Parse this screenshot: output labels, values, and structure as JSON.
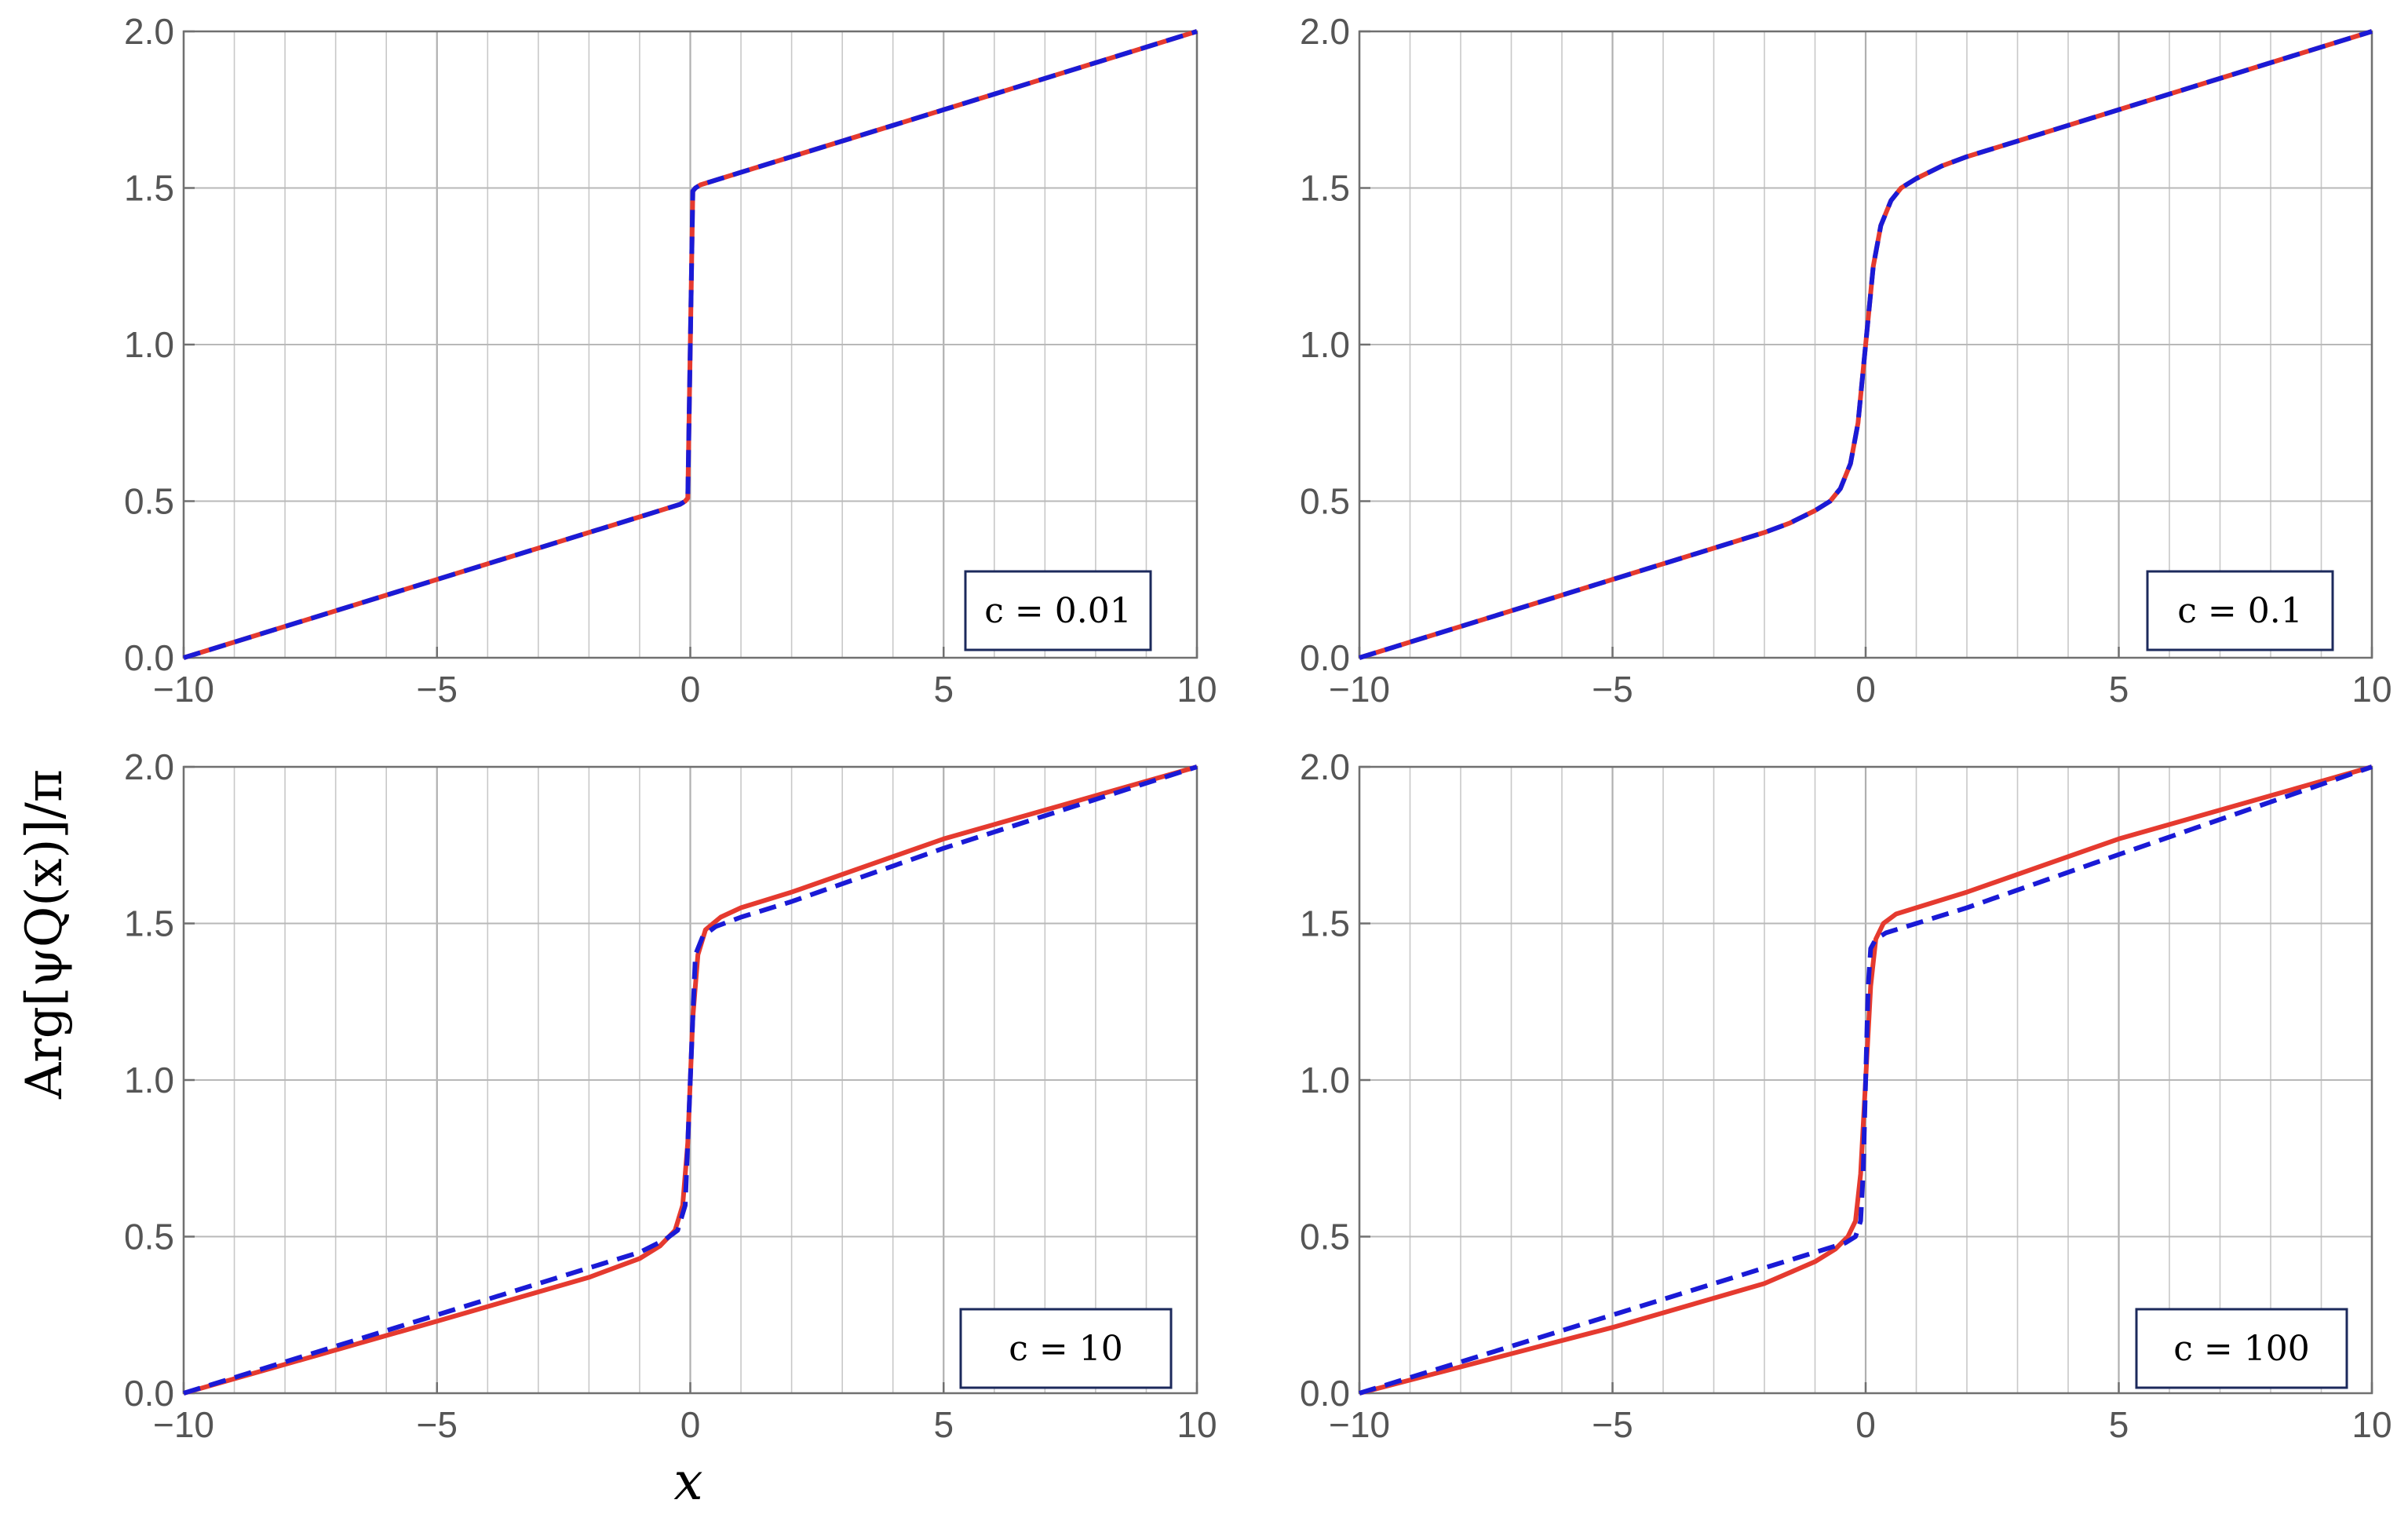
{
  "chart_data": {
    "type": "line",
    "layout": "2x2 grid",
    "shared_xlabel": "x",
    "shared_ylabel": "Arg[ψQ(x)]/π",
    "xlim": [
      -10,
      10
    ],
    "ylim": [
      0,
      2
    ],
    "x_ticks": [
      -10,
      -5,
      0,
      5,
      10
    ],
    "x_tick_labels": [
      "−10",
      "−5",
      "0",
      "5",
      "10"
    ],
    "y_ticks": [
      0,
      0.5,
      1,
      1.5,
      2
    ],
    "y_tick_labels": [
      "0.0",
      "0.5",
      "1.0",
      "1.5",
      "2.0"
    ],
    "grid": true,
    "series_styles": [
      {
        "color": "#e53a2f",
        "dash": "solid"
      },
      {
        "color": "#1a1ad6",
        "dash": "dashed"
      }
    ],
    "panels": [
      {
        "legend": "c = 0.01",
        "legend_position": "bottom-right",
        "series": [
          {
            "x": [
              -10,
              -5,
              -2,
              -1,
              -0.5,
              -0.2,
              -0.1,
              -0.05,
              0,
              0.05,
              0.1,
              0.2,
              0.5,
              1,
              2,
              5,
              10
            ],
            "y": [
              0,
              0.25,
              0.4,
              0.45,
              0.475,
              0.49,
              0.5,
              0.51,
              1.0,
              1.49,
              1.5,
              1.51,
              1.525,
              1.55,
              1.6,
              1.75,
              2.0
            ]
          },
          {
            "x": [
              -10,
              -5,
              -2,
              -1,
              -0.5,
              -0.2,
              -0.1,
              -0.05,
              0,
              0.05,
              0.1,
              0.2,
              0.5,
              1,
              2,
              5,
              10
            ],
            "y": [
              0,
              0.25,
              0.4,
              0.45,
              0.475,
              0.49,
              0.5,
              0.51,
              1.0,
              1.49,
              1.5,
              1.51,
              1.525,
              1.55,
              1.6,
              1.75,
              2.0
            ]
          }
        ]
      },
      {
        "legend": "c = 0.1",
        "legend_position": "bottom-right",
        "series": [
          {
            "x": [
              -10,
              -5,
              -3,
              -2,
              -1.5,
              -1,
              -0.7,
              -0.5,
              -0.3,
              -0.15,
              0,
              0.15,
              0.3,
              0.5,
              0.7,
              1,
              1.5,
              2,
              3,
              5,
              10
            ],
            "y": [
              0,
              0.25,
              0.35,
              0.4,
              0.43,
              0.47,
              0.5,
              0.54,
              0.62,
              0.75,
              1.0,
              1.25,
              1.38,
              1.46,
              1.5,
              1.53,
              1.57,
              1.6,
              1.65,
              1.75,
              2.0
            ]
          },
          {
            "x": [
              -10,
              -5,
              -3,
              -2,
              -1.5,
              -1,
              -0.7,
              -0.5,
              -0.3,
              -0.15,
              0,
              0.15,
              0.3,
              0.5,
              0.7,
              1,
              1.5,
              2,
              3,
              5,
              10
            ],
            "y": [
              0,
              0.25,
              0.35,
              0.4,
              0.43,
              0.47,
              0.5,
              0.54,
              0.62,
              0.75,
              1.0,
              1.25,
              1.38,
              1.46,
              1.5,
              1.53,
              1.57,
              1.6,
              1.65,
              1.75,
              2.0
            ]
          }
        ]
      },
      {
        "legend": "c = 10",
        "legend_position": "bottom-right",
        "series": [
          {
            "x": [
              -10,
              -5,
              -2,
              -1,
              -0.6,
              -0.3,
              -0.15,
              -0.05,
              0,
              0.05,
              0.15,
              0.3,
              0.6,
              1,
              2,
              5,
              10
            ],
            "y": [
              0,
              0.23,
              0.37,
              0.43,
              0.47,
              0.52,
              0.6,
              0.8,
              1.0,
              1.2,
              1.4,
              1.48,
              1.52,
              1.55,
              1.6,
              1.77,
              2.0
            ]
          },
          {
            "x": [
              -10,
              -5,
              -2,
              -1,
              -0.5,
              -0.25,
              -0.1,
              -0.05,
              0,
              0.05,
              0.1,
              0.25,
              0.5,
              1,
              2,
              5,
              10
            ],
            "y": [
              0,
              0.25,
              0.4,
              0.45,
              0.49,
              0.52,
              0.6,
              0.8,
              1.0,
              1.2,
              1.4,
              1.46,
              1.49,
              1.52,
              1.57,
              1.74,
              2.0
            ]
          }
        ]
      },
      {
        "legend": "c = 100",
        "legend_position": "bottom-right",
        "series": [
          {
            "x": [
              -10,
              -5,
              -2,
              -1,
              -0.6,
              -0.35,
              -0.2,
              -0.1,
              0,
              0.1,
              0.2,
              0.35,
              0.6,
              1,
              2,
              5,
              10
            ],
            "y": [
              0,
              0.21,
              0.35,
              0.42,
              0.46,
              0.5,
              0.55,
              0.7,
              1.0,
              1.3,
              1.45,
              1.5,
              1.53,
              1.55,
              1.6,
              1.77,
              2.0
            ]
          },
          {
            "x": [
              -10,
              -5,
              -2,
              -1,
              -0.4,
              -0.2,
              -0.1,
              -0.05,
              0,
              0.05,
              0.1,
              0.2,
              0.4,
              1,
              2,
              5,
              10
            ],
            "y": [
              0,
              0.25,
              0.4,
              0.45,
              0.48,
              0.5,
              0.55,
              0.7,
              1.0,
              1.3,
              1.42,
              1.45,
              1.47,
              1.5,
              1.55,
              1.72,
              2.0
            ]
          }
        ]
      }
    ]
  }
}
